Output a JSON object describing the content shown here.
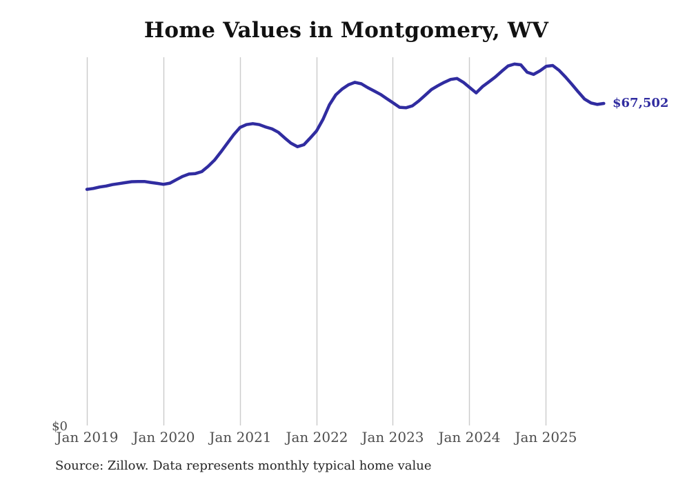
{
  "chart_data": {
    "type": "line",
    "title": "Home Values in Montgomery, WV",
    "series_name": "Monthly typical home value",
    "y_zero_label": "$0",
    "end_label": "$67,502",
    "latest_value": 67502,
    "ylim": [
      0,
      80000
    ],
    "grid": "vertical-only",
    "legend": "none",
    "line_color": "#302ca0",
    "grid_color": "#cbcbcb",
    "axis_label_color": "#4d4d4d",
    "x_tick_labels": [
      "Jan 2019",
      "Jan 2020",
      "Jan 2021",
      "Jan 2022",
      "Jan 2023",
      "Jan 2024",
      "Jan 2025"
    ],
    "x": [
      "2019-01",
      "2019-02",
      "2019-03",
      "2019-04",
      "2019-05",
      "2019-06",
      "2019-07",
      "2019-08",
      "2019-09",
      "2019-10",
      "2019-11",
      "2019-12",
      "2020-01",
      "2020-02",
      "2020-03",
      "2020-04",
      "2020-05",
      "2020-06",
      "2020-07",
      "2020-08",
      "2020-09",
      "2020-10",
      "2020-11",
      "2020-12",
      "2021-01",
      "2021-02",
      "2021-03",
      "2021-04",
      "2021-05",
      "2021-06",
      "2021-07",
      "2021-08",
      "2021-09",
      "2021-10",
      "2021-11",
      "2021-12",
      "2022-01",
      "2022-02",
      "2022-03",
      "2022-04",
      "2022-05",
      "2022-06",
      "2022-07",
      "2022-08",
      "2022-09",
      "2022-10",
      "2022-11",
      "2022-12",
      "2023-01",
      "2023-02",
      "2023-03",
      "2023-04",
      "2023-05",
      "2023-06",
      "2023-07",
      "2023-08",
      "2023-09",
      "2023-10",
      "2023-11",
      "2023-12",
      "2024-01",
      "2024-02",
      "2024-03",
      "2024-04",
      "2024-05",
      "2024-06",
      "2024-07",
      "2024-08",
      "2024-09",
      "2024-10",
      "2024-11",
      "2024-12",
      "2025-01",
      "2025-02",
      "2025-03",
      "2025-04",
      "2025-05",
      "2025-06",
      "2025-07",
      "2025-08",
      "2025-09",
      "2025-10"
    ],
    "values": [
      49600,
      49800,
      50100,
      50300,
      50600,
      50800,
      51000,
      51200,
      51250,
      51250,
      51050,
      50850,
      50650,
      50900,
      51600,
      52300,
      52800,
      52900,
      53300,
      54400,
      55700,
      57400,
      59200,
      61000,
      62500,
      63100,
      63300,
      63100,
      62600,
      62200,
      61500,
      60300,
      59200,
      58500,
      58900,
      60300,
      61800,
      64200,
      67200,
      69300,
      70500,
      71400,
      71900,
      71600,
      70800,
      70100,
      69400,
      68500,
      67600,
      66700,
      66600,
      67000,
      68000,
      69200,
      70400,
      71200,
      71900,
      72500,
      72700,
      71900,
      70800,
      69700,
      71000,
      72000,
      73000,
      74200,
      75300,
      75700,
      75550,
      74000,
      73550,
      74300,
      75250,
      75400,
      74400,
      73000,
      71500,
      69900,
      68400,
      67600,
      67300,
      67502
    ]
  },
  "source_note": "Source: Zillow. Data represents monthly typical home value"
}
